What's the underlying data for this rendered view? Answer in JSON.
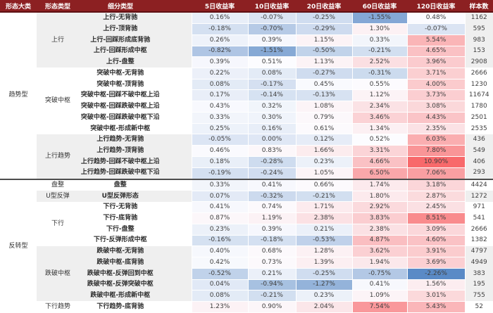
{
  "chart_data": {
    "type": "heatmap",
    "title": "",
    "columns": [
      "形态大类",
      "形态类型",
      "细分类型",
      "5日收益率",
      "10日收益率",
      "20日收益率",
      "60日收益率",
      "120日收益率",
      "样本数"
    ],
    "value_columns": [
      "5日收益率",
      "10日收益率",
      "20日收益率",
      "60日收益率",
      "120日收益率"
    ],
    "heatmap_scale": {
      "min": -2.26,
      "mid": 0.5,
      "max": 10.9,
      "low_color": "#5a8ac6",
      "mid_color": "#fcfcff",
      "high_color": "#f8696b"
    },
    "colors": {
      "header_bg": "#8c2022",
      "header_text": "#ffffff",
      "stripe_bg": "#efefef",
      "section_divider": "#4d4d4d"
    },
    "groups": [
      {
        "category": "趋势型",
        "types": [
          {
            "type": "上行",
            "rows": [
              {
                "label": "上行-无背驰",
                "values": [
                  "0.16%",
                  "-0.07%",
                  "-0.25%",
                  "-1.55%",
                  "0.48%"
                ],
                "samples": "1162"
              },
              {
                "label": "上行-顶背驰",
                "values": [
                  "-0.18%",
                  "-0.70%",
                  "-0.29%",
                  "1.30%",
                  "-0.07%"
                ],
                "samples": "595"
              },
              {
                "label": "上行-回踩形成底背驰",
                "values": [
                  "0.26%",
                  "0.39%",
                  "1.15%",
                  "0.33%",
                  "5.54%"
                ],
                "samples": "983"
              },
              {
                "label": "上行-回踩形成中枢",
                "values": [
                  "-0.82%",
                  "-1.51%",
                  "-0.50%",
                  "-0.21%",
                  "4.65%"
                ],
                "samples": "153"
              },
              {
                "label": "上行-盘整",
                "values": [
                  "0.39%",
                  "0.51%",
                  "1.13%",
                  "2.52%",
                  "3.96%"
                ],
                "samples": "2908"
              }
            ]
          },
          {
            "type": "突破中枢",
            "rows": [
              {
                "label": "突破中枢-无背驰",
                "values": [
                  "0.22%",
                  "0.08%",
                  "-0.27%",
                  "-0.31%",
                  "3.71%"
                ],
                "samples": "2666"
              },
              {
                "label": "突破中枢-顶背驰",
                "values": [
                  "0.08%",
                  "-0.17%",
                  "0.45%",
                  "0.55%",
                  "4.00%"
                ],
                "samples": "1230"
              },
              {
                "label": "突破中枢-回踩不破中枢上沿",
                "values": [
                  "0.17%",
                  "-0.14%",
                  "-0.13%",
                  "1.12%",
                  "3.73%"
                ],
                "samples": "11674"
              },
              {
                "label": "突破中枢-回踩跌破中枢上沿",
                "values": [
                  "0.43%",
                  "0.32%",
                  "1.08%",
                  "2.34%",
                  "3.08%"
                ],
                "samples": "1780"
              },
              {
                "label": "突破中枢-回踩跌破中枢下沿",
                "values": [
                  "0.33%",
                  "0.30%",
                  "0.79%",
                  "3.46%",
                  "4.43%"
                ],
                "samples": "2501"
              },
              {
                "label": "突破中枢-形成新中枢",
                "values": [
                  "0.25%",
                  "0.16%",
                  "0.61%",
                  "1.34%",
                  "2.35%"
                ],
                "samples": "2535"
              }
            ]
          },
          {
            "type": "上行趋势",
            "rows": [
              {
                "label": "上行趋势-无背驰",
                "values": [
                  "-0.05%",
                  "0.00%",
                  "0.12%",
                  "0.52%",
                  "6.03%"
                ],
                "samples": "436"
              },
              {
                "label": "上行趋势-顶背驰",
                "values": [
                  "0.46%",
                  "0.83%",
                  "1.66%",
                  "3.31%",
                  "7.80%"
                ],
                "samples": "549"
              },
              {
                "label": "上行趋势-回踩不破中枢上沿",
                "values": [
                  "0.18%",
                  "-0.28%",
                  "0.23%",
                  "4.66%",
                  "10.90%"
                ],
                "samples": "406"
              },
              {
                "label": "上行趋势-回踩跌破中枢下沿",
                "values": [
                  "-0.19%",
                  "-0.24%",
                  "1.05%",
                  "6.50%",
                  "7.06%"
                ],
                "samples": "293"
              }
            ]
          }
        ]
      },
      {
        "category": "反转型",
        "types": [
          {
            "type": "盘整",
            "rows": [
              {
                "label": "盘整",
                "values": [
                  "0.33%",
                  "0.41%",
                  "0.66%",
                  "1.74%",
                  "3.18%"
                ],
                "samples": "4424"
              }
            ]
          },
          {
            "type": "U型反弹",
            "rows": [
              {
                "label": "U型反弹形态",
                "values": [
                  "0.07%",
                  "-0.32%",
                  "-0.21%",
                  "1.80%",
                  "2.87%"
                ],
                "samples": "1272"
              }
            ]
          },
          {
            "type": "下行",
            "rows": [
              {
                "label": "下行-无背驰",
                "values": [
                  "0.41%",
                  "0.74%",
                  "1.71%",
                  "2.92%",
                  "2.45%"
                ],
                "samples": "971"
              },
              {
                "label": "下行-底背驰",
                "values": [
                  "0.87%",
                  "1.19%",
                  "2.38%",
                  "3.83%",
                  "8.51%"
                ],
                "samples": "541"
              },
              {
                "label": "下行-盘整",
                "values": [
                  "0.23%",
                  "0.39%",
                  "0.21%",
                  "2.38%",
                  "3.09%"
                ],
                "samples": "2666"
              },
              {
                "label": "下行-反弹形成中枢",
                "values": [
                  "-0.16%",
                  "-0.18%",
                  "-0.53%",
                  "4.87%",
                  "4.60%"
                ],
                "samples": "1382"
              }
            ]
          },
          {
            "type": "跌破中枢",
            "rows": [
              {
                "label": "跌破中枢-无背驰",
                "values": [
                  "0.40%",
                  "0.68%",
                  "1.28%",
                  "3.62%",
                  "3.91%"
                ],
                "samples": "4797"
              },
              {
                "label": "跌破中枢-底背驰",
                "values": [
                  "0.42%",
                  "0.73%",
                  "1.39%",
                  "1.94%",
                  "3.69%"
                ],
                "samples": "4949"
              },
              {
                "label": "跌破中枢-反弹回到中枢",
                "values": [
                  "-0.52%",
                  "0.21%",
                  "-0.25%",
                  "-0.75%",
                  "-2.26%"
                ],
                "samples": "383"
              },
              {
                "label": "跌破中枢-反弹突破中枢",
                "values": [
                  "0.04%",
                  "-0.94%",
                  "-1.27%",
                  "0.41%",
                  "1.56%"
                ],
                "samples": "195"
              },
              {
                "label": "跌破中枢-形成新中枢",
                "values": [
                  "0.08%",
                  "-0.21%",
                  "0.23%",
                  "1.09%",
                  "3.01%"
                ],
                "samples": "755"
              }
            ]
          },
          {
            "type": "下行趋势",
            "rows": [
              {
                "label": "下行趋势-底背驰",
                "values": [
                  "1.23%",
                  "0.90%",
                  "2.04%",
                  "7.54%",
                  "5.43%"
                ],
                "samples": "52"
              }
            ]
          }
        ]
      }
    ]
  }
}
